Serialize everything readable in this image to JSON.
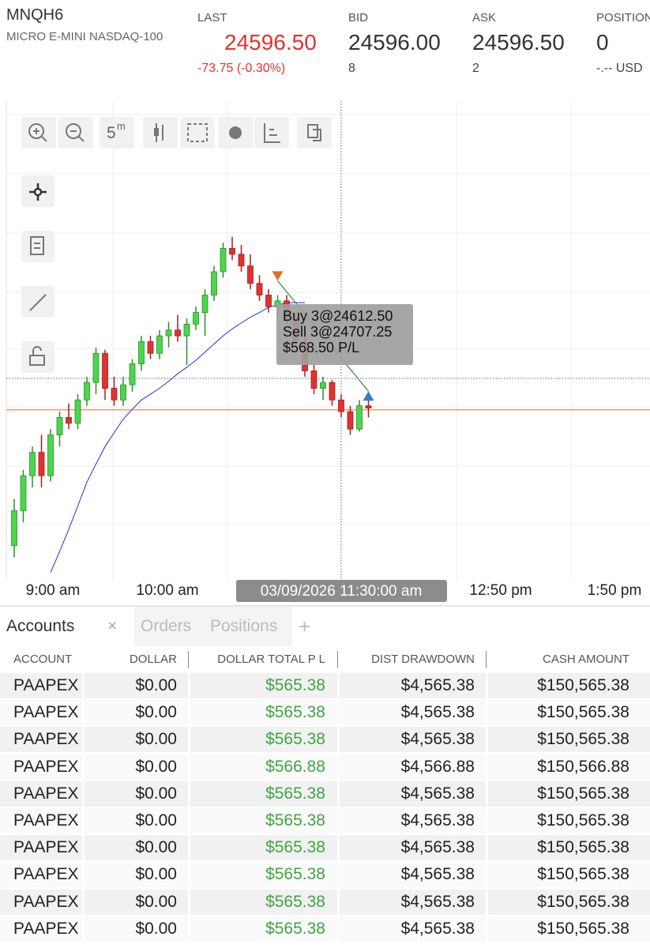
{
  "header": {
    "symbol": "MNQH6",
    "description": "MICRO E-MINI NASDAQ-100",
    "fields": [
      {
        "label": "LAST",
        "value": "24596.50",
        "sub": "-73.75 (-0.30%)"
      },
      {
        "label": "BID",
        "value": "24596.00",
        "sub": "8"
      },
      {
        "label": "ASK",
        "value": "24596.50",
        "sub": "2"
      },
      {
        "label": "POSITION",
        "value": "0",
        "sub": "-.-- USD"
      }
    ]
  },
  "toolbar": {
    "interval": "5",
    "interval_unit": "m"
  },
  "chart_data": {
    "type": "candlestick",
    "ylim": [
      24450,
      24860
    ],
    "up_color": "#4cd64c",
    "down_color": "#e2322f",
    "ma_color": "#2b2bd6",
    "last_price": 24596.5,
    "last_price_color": "#f07a3c",
    "crosshair_price": 24623.5,
    "candles": [
      [
        24480,
        24520,
        24470,
        24510
      ],
      [
        24510,
        24545,
        24500,
        24540
      ],
      [
        24540,
        24565,
        24530,
        24560
      ],
      [
        24560,
        24575,
        24530,
        24540
      ],
      [
        24540,
        24580,
        24535,
        24575
      ],
      [
        24575,
        24595,
        24565,
        24590
      ],
      [
        24590,
        24602,
        24580,
        24585
      ],
      [
        24585,
        24610,
        24580,
        24605
      ],
      [
        24605,
        24625,
        24600,
        24620
      ],
      [
        24620,
        24650,
        24610,
        24645
      ],
      [
        24645,
        24648,
        24605,
        24615
      ],
      [
        24615,
        24625,
        24600,
        24605
      ],
      [
        24605,
        24625,
        24600,
        24618
      ],
      [
        24618,
        24640,
        24612,
        24636
      ],
      [
        24636,
        24660,
        24630,
        24655
      ],
      [
        24655,
        24660,
        24640,
        24645
      ],
      [
        24645,
        24665,
        24640,
        24660
      ],
      [
        24660,
        24672,
        24650,
        24665
      ],
      [
        24665,
        24678,
        24655,
        24660
      ],
      [
        24660,
        24675,
        24635,
        24670
      ],
      [
        24670,
        24685,
        24665,
        24680
      ],
      [
        24680,
        24700,
        24660,
        24695
      ],
      [
        24695,
        24720,
        24690,
        24715
      ],
      [
        24715,
        24740,
        24710,
        24735
      ],
      [
        24735,
        24745,
        24725,
        24730
      ],
      [
        24730,
        24738,
        24715,
        24720
      ],
      [
        24720,
        24730,
        24700,
        24705
      ],
      [
        24705,
        24712,
        24690,
        24695
      ],
      [
        24695,
        24700,
        24680,
        24685
      ],
      [
        24685,
        24695,
        24675,
        24690
      ],
      [
        24690,
        24695,
        24670,
        24675
      ],
      [
        24675,
        24680,
        24650,
        24655
      ],
      [
        24655,
        24660,
        24625,
        24630
      ],
      [
        24630,
        24635,
        24610,
        24615
      ],
      [
        24615,
        24625,
        24605,
        24620
      ],
      [
        24620,
        24622,
        24600,
        24605
      ],
      [
        24605,
        24610,
        24590,
        24595
      ],
      [
        24595,
        24600,
        24575,
        24580
      ],
      [
        24580,
        24605,
        24578,
        24600
      ],
      [
        24600,
        24610,
        24590,
        24598
      ]
    ],
    "ma": [
      null,
      null,
      null,
      null,
      24457,
      24475,
      24494,
      24514,
      24534.5,
      24550,
      24565,
      24577,
      24588.5,
      24597,
      24605,
      24610,
      24615,
      24621,
      24627.5,
      24633,
      24639,
      24646,
      24653,
      24660,
      24666,
      24671,
      24676,
      24680,
      24684.5,
      24686.5,
      24688.5,
      24688.5,
      24688.5,
      null,
      null,
      null,
      null,
      null,
      null,
      null
    ],
    "trade": {
      "entry": 24707.25,
      "entry_index": 29,
      "exit": 24612.5,
      "exit_index": 39,
      "lines": [
        "Buy 3@24612.50",
        "Sell 3@24707.25",
        "$568.50 P/L"
      ]
    },
    "time_labels": [
      "9:00 am",
      "10:00 am",
      "12:50 pm",
      "1:50 pm"
    ],
    "crosshair_time": "03/09/2026 11:30:00 am"
  },
  "tabs": [
    "Accounts",
    "Orders",
    "Positions"
  ],
  "table": {
    "columns": [
      "ACCOUNT",
      "DOLLAR",
      "DOLLAR TOTAL P L",
      "DIST DRAWDOWN",
      "CASH AMOUNT"
    ],
    "rows": [
      [
        "PAAPEX",
        "$0.00",
        "$565.38",
        "$4,565.38",
        "$150,565.38"
      ],
      [
        "PAAPEX",
        "$0.00",
        "$565.38",
        "$4,565.38",
        "$150,565.38"
      ],
      [
        "PAAPEX",
        "$0.00",
        "$565.38",
        "$4,565.38",
        "$150,565.38"
      ],
      [
        "PAAPEX",
        "$0.00",
        "$566.88",
        "$4,566.88",
        "$150,566.88"
      ],
      [
        "PAAPEX",
        "$0.00",
        "$565.38",
        "$4,565.38",
        "$150,565.38"
      ],
      [
        "PAAPEX",
        "$0.00",
        "$565.38",
        "$4,565.38",
        "$150,565.38"
      ],
      [
        "PAAPEX",
        "$0.00",
        "$565.38",
        "$4,565.38",
        "$150,565.38"
      ],
      [
        "PAAPEX",
        "$0.00",
        "$565.38",
        "$4,565.38",
        "$150,565.38"
      ],
      [
        "PAAPEX",
        "$0.00",
        "$565.38",
        "$4,565.38",
        "$150,565.38"
      ],
      [
        "PAAPEX",
        "$0.00",
        "$565.38",
        "$4,565.38",
        "$150,565.38"
      ]
    ]
  }
}
